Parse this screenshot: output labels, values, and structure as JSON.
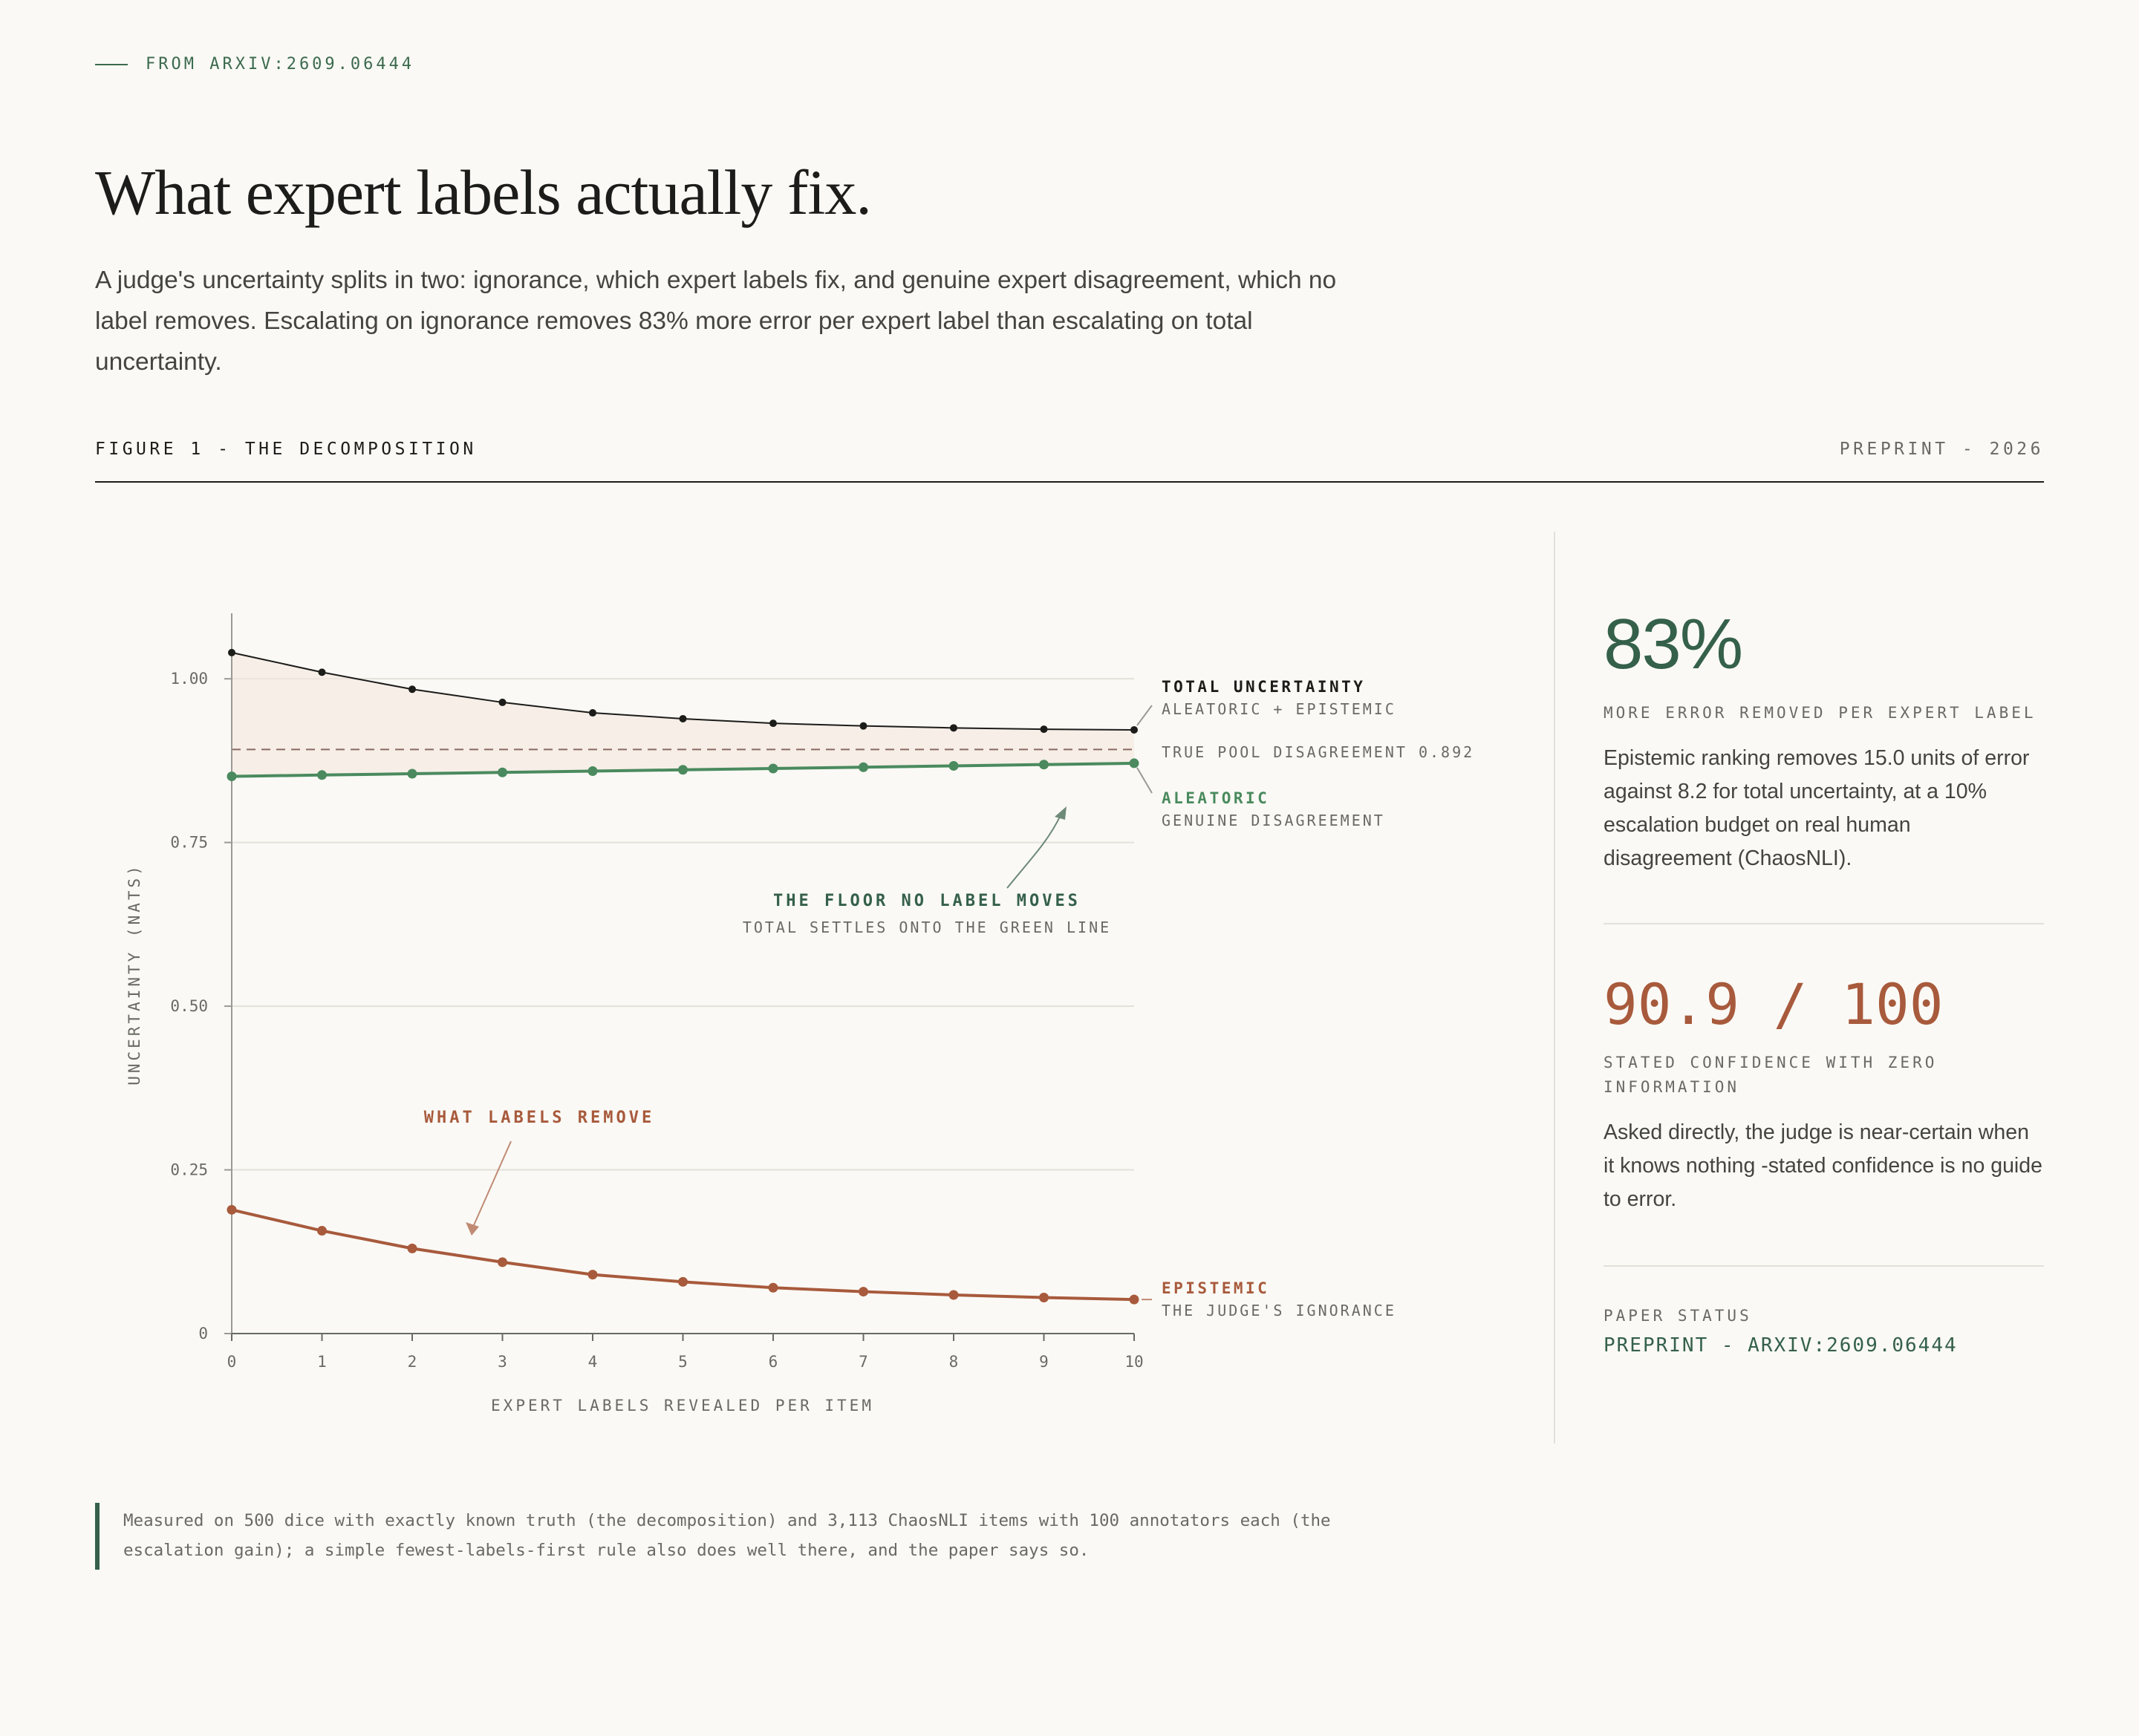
{
  "eyebrow": "FROM ARXIV:2609.06444",
  "title": "What expert labels actually fix.",
  "subtitle": "A judge's uncertainty splits in two: ignorance, which expert labels fix, and genuine expert disagreement, which no label removes. Escalating on ignorance removes 83% more error per expert label than escalating on total uncertainty.",
  "figure": {
    "label": "FIGURE 1 - THE DECOMPOSITION",
    "status": "PREPRINT - 2026"
  },
  "chart_data": {
    "type": "line",
    "xlabel": "EXPERT LABELS REVEALED PER ITEM",
    "ylabel": "UNCERTAINTY (NATS)",
    "xlim": [
      0,
      10
    ],
    "ylim": [
      0,
      1.1
    ],
    "x": [
      0,
      1,
      2,
      3,
      4,
      5,
      6,
      7,
      8,
      9,
      10
    ],
    "x_ticks": [
      "0",
      "1",
      "2",
      "3",
      "4",
      "5",
      "6",
      "7",
      "8",
      "9",
      "10"
    ],
    "y_ticks": [
      {
        "value": 0,
        "label": "0"
      },
      {
        "value": 0.25,
        "label": "0.25"
      },
      {
        "value": 0.5,
        "label": "0.50"
      },
      {
        "value": 0.75,
        "label": "0.75"
      },
      {
        "value": 1.0,
        "label": "1.00"
      }
    ],
    "grid": true,
    "series": [
      {
        "name": "TOTAL UNCERTAINTY",
        "sublabel": "ALEATORIC + EPISTEMIC",
        "color": "#1c1c1a",
        "values": [
          1.04,
          1.01,
          0.984,
          0.964,
          0.948,
          0.939,
          0.932,
          0.928,
          0.925,
          0.923,
          0.922
        ]
      },
      {
        "name": "ALEATORIC",
        "sublabel": "GENUINE DISAGREEMENT",
        "color": "#4a8a5e",
        "values": [
          0.851,
          0.853,
          0.855,
          0.857,
          0.859,
          0.861,
          0.863,
          0.865,
          0.867,
          0.869,
          0.871
        ]
      },
      {
        "name": "EPISTEMIC",
        "sublabel": "THE JUDGE'S IGNORANCE",
        "color": "#a85a3c",
        "values": [
          0.189,
          0.157,
          0.13,
          0.109,
          0.09,
          0.079,
          0.07,
          0.064,
          0.059,
          0.055,
          0.052
        ]
      }
    ],
    "reference_line": {
      "label": "TRUE POOL DISAGREEMENT 0.892",
      "value": 0.892
    },
    "annotations": {
      "floor_title": "THE FLOOR NO LABEL MOVES",
      "floor_sub": "TOTAL SETTLES ONTO THE GREEN LINE",
      "remove": "WHAT LABELS REMOVE"
    }
  },
  "stats": [
    {
      "value": "83%",
      "caption": "MORE ERROR REMOVED PER EXPERT LABEL",
      "body": "Epistemic ranking removes 15.0 units of error against 8.2 for total uncertainty, at a 10% escalation budget on real human disagreement (ChaosNLI)."
    },
    {
      "value": "90.9 / 100",
      "caption": "STATED CONFIDENCE WITH ZERO INFORMATION",
      "body": "Asked directly, the judge is near-certain when it knows nothing -stated confidence is no guide to error."
    }
  ],
  "paper_status": {
    "label": "PAPER STATUS",
    "value": "PREPRINT - ARXIV:2609.06444"
  },
  "footnote": "Measured on 500 dice with exactly known truth (the decomposition) and 3,113 ChaosNLI items with 100 annotators each (the escalation gain); a simple fewest-labels-first rule also does well there, and the paper says so."
}
